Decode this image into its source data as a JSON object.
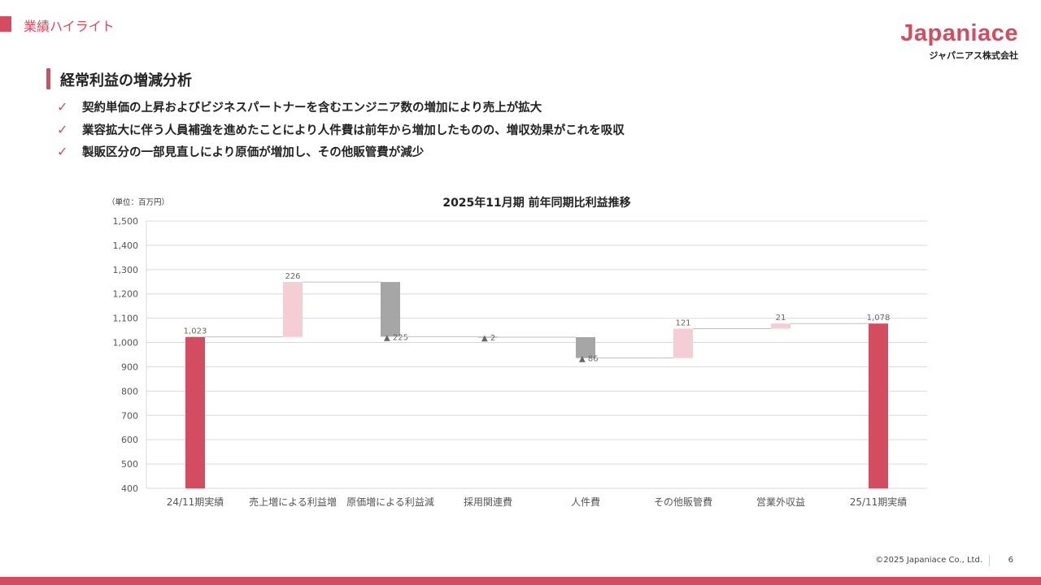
{
  "header": {
    "section_label": "業績ハイライト",
    "logo_text": "Japaniace",
    "logo_subtext": "ジャパニアス株式会社"
  },
  "heading": "経常利益の増減分析",
  "bullets": [
    "契約単価の上昇およびビジネスパートナーを含むエンジニア数の増加により売上が拡大",
    "業容拡大に伴う人員補強を進めたことにより人件費は前年から増加したものの、増収効果がこれを吸収",
    "製販区分の一部見直しにより原価が増加し、その他販管費が減少"
  ],
  "check_icon": "✓",
  "colors": {
    "accent": "#d44c5f",
    "increase": "#f5cdd4",
    "decrease": "#a6a6a6",
    "total": "#d44c5f"
  },
  "chart_data": {
    "type": "waterfall",
    "title": "2025年11月期  前年同期比利益推移",
    "unit_label": "（単位：百万円）",
    "ylim": [
      400,
      1500
    ],
    "yticks": [
      400,
      500,
      600,
      700,
      800,
      900,
      1000,
      1100,
      1200,
      1300,
      1400,
      1500
    ],
    "grid": true,
    "categories": [
      "24/11期実績",
      "売上増による利益増",
      "原価増による利益減",
      "採用関連費",
      "人件費",
      "その他販管費",
      "営業外収益",
      "25/11期実績"
    ],
    "steps": [
      {
        "kind": "total",
        "value": 1023,
        "label": "1,023"
      },
      {
        "kind": "increase",
        "value": 226,
        "label": "226"
      },
      {
        "kind": "decrease",
        "value": -225,
        "label": "▲ 225"
      },
      {
        "kind": "decrease",
        "value": -2,
        "label": "▲ 2"
      },
      {
        "kind": "decrease",
        "value": -86,
        "label": "▲ 86"
      },
      {
        "kind": "increase",
        "value": 121,
        "label": "121"
      },
      {
        "kind": "increase",
        "value": 21,
        "label": "21"
      },
      {
        "kind": "total",
        "value": 1078,
        "label": "1,078"
      }
    ]
  },
  "footer": {
    "copyright": "©2025 Japaniace Co., Ltd.",
    "page_number": "6"
  }
}
